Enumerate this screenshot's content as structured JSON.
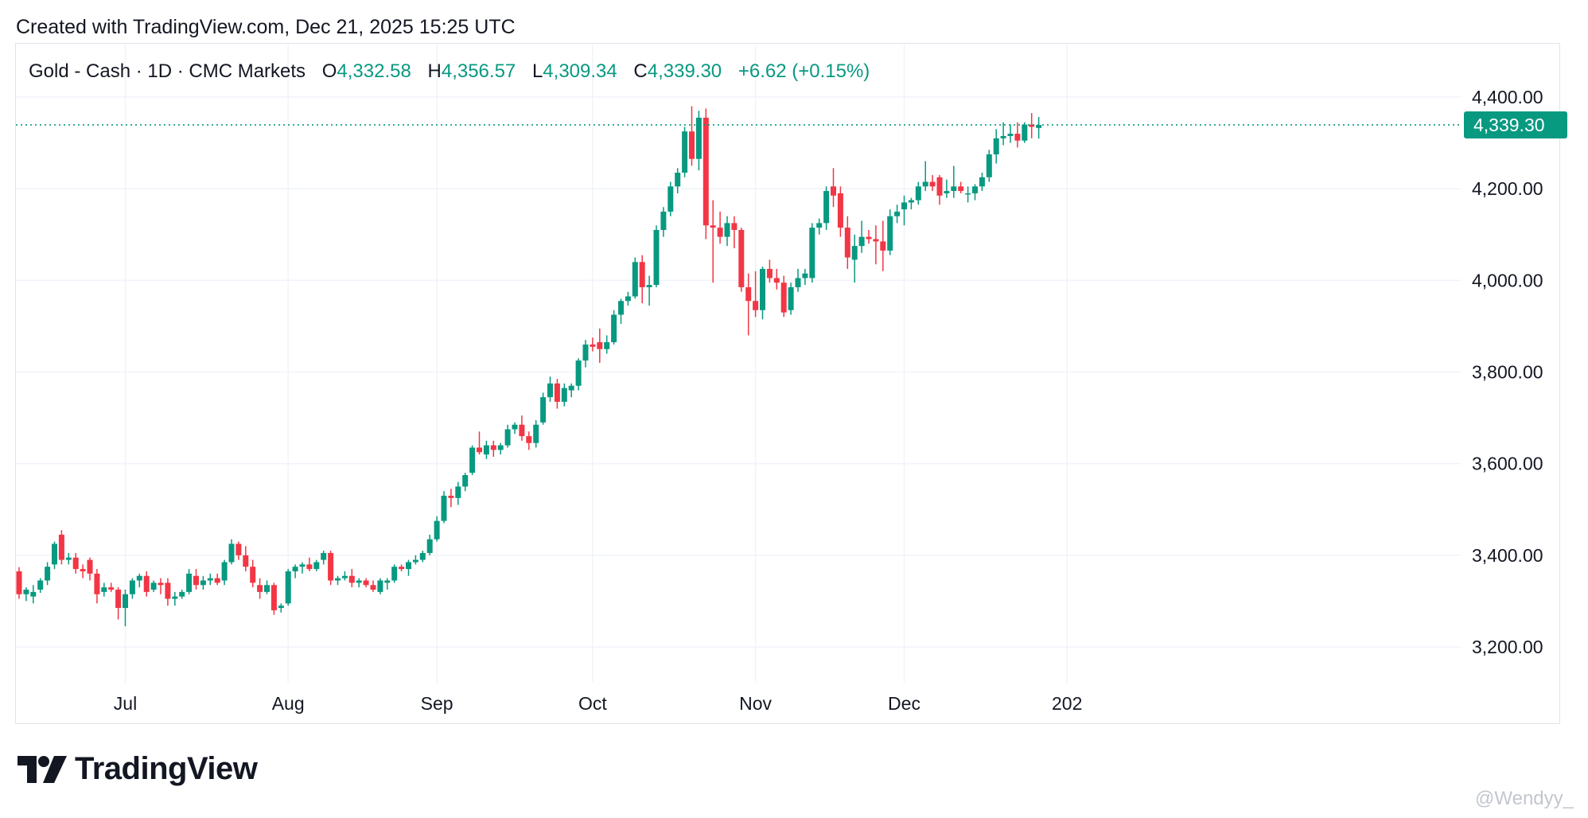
{
  "header": {
    "created_text": "Created with TradingView.com, Dec 21, 2025 15:25 UTC"
  },
  "legend": {
    "symbol": "Gold - Cash · 1D · CMC Markets",
    "o_label": "O",
    "o_value": "4,332.58",
    "h_label": "H",
    "h_value": "4,356.57",
    "l_label": "L",
    "l_value": "4,309.34",
    "c_label": "C",
    "c_value": "4,339.30",
    "change": "+6.62 (+0.15%)"
  },
  "price_tag": "4,339.30",
  "brand": {
    "wordmark": "TradingView",
    "logo_icon": "tradingview-logo-icon"
  },
  "watermark": "@Wendyy_",
  "colors": {
    "up": "#089981",
    "down": "#f23645",
    "grid": "#f0f3fa",
    "tag": "#089981"
  },
  "chart_data": {
    "type": "candlestick",
    "timeframe": "1D",
    "y_ticks": [
      3200,
      3400,
      3600,
      3800,
      4000,
      4200,
      4400
    ],
    "y_tick_labels": [
      "3,200.00",
      "3,400.00",
      "3,600.00",
      "3,800.00",
      "4,000.00",
      "4,200.00",
      "4,400.00"
    ],
    "ylim": [
      3070,
      4470
    ],
    "x_ticks": [
      {
        "label": "Jul",
        "index": 15
      },
      {
        "label": "Aug",
        "index": 38
      },
      {
        "label": "Sep",
        "index": 59
      },
      {
        "label": "Oct",
        "index": 81
      },
      {
        "label": "Nov",
        "index": 104
      },
      {
        "label": "Dec",
        "index": 125
      },
      {
        "label": "202",
        "index": 148
      }
    ],
    "last_close": 4339.3,
    "candles": [
      [
        3365,
        3374,
        3305,
        3315
      ],
      [
        3315,
        3330,
        3300,
        3325
      ],
      [
        3310,
        3335,
        3295,
        3320
      ],
      [
        3325,
        3350,
        3318,
        3345
      ],
      [
        3345,
        3385,
        3335,
        3375
      ],
      [
        3380,
        3430,
        3370,
        3425
      ],
      [
        3445,
        3455,
        3380,
        3390
      ],
      [
        3390,
        3405,
        3380,
        3395
      ],
      [
        3395,
        3405,
        3360,
        3370
      ],
      [
        3370,
        3380,
        3350,
        3365
      ],
      [
        3390,
        3395,
        3345,
        3360
      ],
      [
        3360,
        3370,
        3295,
        3315
      ],
      [
        3320,
        3340,
        3310,
        3330
      ],
      [
        3330,
        3340,
        3320,
        3325
      ],
      [
        3325,
        3330,
        3260,
        3285
      ],
      [
        3285,
        3325,
        3245,
        3315
      ],
      [
        3315,
        3350,
        3305,
        3345
      ],
      [
        3345,
        3360,
        3330,
        3355
      ],
      [
        3355,
        3365,
        3310,
        3320
      ],
      [
        3325,
        3345,
        3320,
        3340
      ],
      [
        3340,
        3350,
        3315,
        3335
      ],
      [
        3340,
        3350,
        3290,
        3305
      ],
      [
        3305,
        3320,
        3290,
        3310
      ],
      [
        3310,
        3325,
        3305,
        3320
      ],
      [
        3320,
        3370,
        3315,
        3360
      ],
      [
        3355,
        3370,
        3325,
        3335
      ],
      [
        3335,
        3355,
        3325,
        3345
      ],
      [
        3345,
        3360,
        3335,
        3350
      ],
      [
        3350,
        3360,
        3335,
        3340
      ],
      [
        3345,
        3390,
        3335,
        3385
      ],
      [
        3385,
        3435,
        3380,
        3425
      ],
      [
        3425,
        3430,
        3390,
        3400
      ],
      [
        3400,
        3420,
        3365,
        3375
      ],
      [
        3375,
        3390,
        3330,
        3340
      ],
      [
        3335,
        3350,
        3305,
        3320
      ],
      [
        3320,
        3345,
        3315,
        3335
      ],
      [
        3335,
        3340,
        3270,
        3280
      ],
      [
        3285,
        3295,
        3275,
        3290
      ],
      [
        3295,
        3370,
        3290,
        3365
      ],
      [
        3365,
        3380,
        3350,
        3375
      ],
      [
        3375,
        3385,
        3360,
        3380
      ],
      [
        3380,
        3395,
        3365,
        3370
      ],
      [
        3370,
        3390,
        3365,
        3385
      ],
      [
        3390,
        3410,
        3380,
        3405
      ],
      [
        3405,
        3410,
        3335,
        3345
      ],
      [
        3345,
        3355,
        3335,
        3350
      ],
      [
        3350,
        3365,
        3345,
        3355
      ],
      [
        3355,
        3370,
        3330,
        3340
      ],
      [
        3340,
        3350,
        3330,
        3345
      ],
      [
        3345,
        3350,
        3330,
        3335
      ],
      [
        3335,
        3345,
        3320,
        3325
      ],
      [
        3320,
        3350,
        3315,
        3345
      ],
      [
        3340,
        3350,
        3325,
        3345
      ],
      [
        3345,
        3380,
        3340,
        3375
      ],
      [
        3375,
        3380,
        3365,
        3370
      ],
      [
        3370,
        3390,
        3355,
        3385
      ],
      [
        3385,
        3400,
        3380,
        3390
      ],
      [
        3390,
        3410,
        3385,
        3405
      ],
      [
        3405,
        3445,
        3400,
        3435
      ],
      [
        3435,
        3485,
        3430,
        3475
      ],
      [
        3475,
        3540,
        3470,
        3530
      ],
      [
        3530,
        3545,
        3505,
        3525
      ],
      [
        3525,
        3560,
        3510,
        3550
      ],
      [
        3550,
        3580,
        3540,
        3575
      ],
      [
        3580,
        3640,
        3575,
        3635
      ],
      [
        3635,
        3670,
        3620,
        3625
      ],
      [
        3620,
        3650,
        3610,
        3640
      ],
      [
        3640,
        3650,
        3615,
        3630
      ],
      [
        3630,
        3645,
        3620,
        3640
      ],
      [
        3640,
        3685,
        3635,
        3675
      ],
      [
        3675,
        3690,
        3665,
        3685
      ],
      [
        3685,
        3705,
        3650,
        3660
      ],
      [
        3660,
        3670,
        3630,
        3645
      ],
      [
        3645,
        3695,
        3635,
        3685
      ],
      [
        3690,
        3755,
        3685,
        3745
      ],
      [
        3745,
        3790,
        3735,
        3775
      ],
      [
        3775,
        3785,
        3720,
        3735
      ],
      [
        3735,
        3775,
        3725,
        3765
      ],
      [
        3760,
        3775,
        3745,
        3770
      ],
      [
        3770,
        3830,
        3760,
        3825
      ],
      [
        3825,
        3870,
        3810,
        3860
      ],
      [
        3860,
        3875,
        3845,
        3855
      ],
      [
        3865,
        3895,
        3820,
        3850
      ],
      [
        3850,
        3880,
        3840,
        3865
      ],
      [
        3865,
        3935,
        3860,
        3925
      ],
      [
        3925,
        3960,
        3905,
        3955
      ],
      [
        3955,
        3975,
        3945,
        3965
      ],
      [
        3965,
        4050,
        3960,
        4040
      ],
      [
        4040,
        4055,
        3950,
        3985
      ],
      [
        3985,
        4010,
        3945,
        3990
      ],
      [
        3990,
        4120,
        3985,
        4110
      ],
      [
        4110,
        4160,
        4095,
        4150
      ],
      [
        4150,
        4215,
        4140,
        4205
      ],
      [
        4205,
        4245,
        4190,
        4235
      ],
      [
        4235,
        4335,
        4225,
        4325
      ],
      [
        4325,
        4380,
        4250,
        4265
      ],
      [
        4265,
        4370,
        4240,
        4355
      ],
      [
        4355,
        4375,
        4090,
        4120
      ],
      [
        4120,
        4175,
        3995,
        4115
      ],
      [
        4115,
        4150,
        4080,
        4095
      ],
      [
        4095,
        4140,
        4075,
        4125
      ],
      [
        4125,
        4140,
        4070,
        4110
      ],
      [
        4110,
        4115,
        3975,
        3985
      ],
      [
        3985,
        4015,
        3880,
        3955
      ],
      [
        3955,
        4020,
        3920,
        3935
      ],
      [
        3935,
        4030,
        3915,
        4025
      ],
      [
        4025,
        4045,
        3995,
        4005
      ],
      [
        4005,
        4025,
        3980,
        3995
      ],
      [
        3995,
        4010,
        3920,
        3930
      ],
      [
        3935,
        3995,
        3925,
        3985
      ],
      [
        3985,
        4025,
        3975,
        4005
      ],
      [
        4005,
        4025,
        3990,
        4015
      ],
      [
        4005,
        4125,
        3995,
        4115
      ],
      [
        4115,
        4135,
        4100,
        4125
      ],
      [
        4125,
        4205,
        4110,
        4195
      ],
      [
        4205,
        4245,
        4160,
        4185
      ],
      [
        4190,
        4205,
        4095,
        4115
      ],
      [
        4115,
        4140,
        4025,
        4050
      ],
      [
        4045,
        4100,
        3995,
        4075
      ],
      [
        4075,
        4130,
        4060,
        4095
      ],
      [
        4095,
        4110,
        4080,
        4090
      ],
      [
        4090,
        4120,
        4035,
        4085
      ],
      [
        4085,
        4130,
        4020,
        4065
      ],
      [
        4065,
        4155,
        4055,
        4140
      ],
      [
        4140,
        4165,
        4125,
        4150
      ],
      [
        4155,
        4185,
        4120,
        4170
      ],
      [
        4170,
        4180,
        4155,
        4175
      ],
      [
        4175,
        4215,
        4165,
        4205
      ],
      [
        4205,
        4260,
        4195,
        4215
      ],
      [
        4215,
        4230,
        4195,
        4205
      ],
      [
        4225,
        4230,
        4165,
        4185
      ],
      [
        4190,
        4220,
        4180,
        4195
      ],
      [
        4195,
        4250,
        4180,
        4205
      ],
      [
        4205,
        4215,
        4190,
        4195
      ],
      [
        4190,
        4205,
        4170,
        4190
      ],
      [
        4190,
        4210,
        4175,
        4205
      ],
      [
        4205,
        4235,
        4195,
        4225
      ],
      [
        4225,
        4285,
        4215,
        4275
      ],
      [
        4275,
        4330,
        4255,
        4310
      ],
      [
        4310,
        4345,
        4295,
        4315
      ],
      [
        4315,
        4340,
        4300,
        4320
      ],
      [
        4320,
        4345,
        4290,
        4305
      ],
      [
        4305,
        4345,
        4300,
        4340
      ],
      [
        4340,
        4365,
        4310,
        4335
      ],
      [
        4332.58,
        4356.57,
        4309.34,
        4339.3
      ]
    ]
  }
}
